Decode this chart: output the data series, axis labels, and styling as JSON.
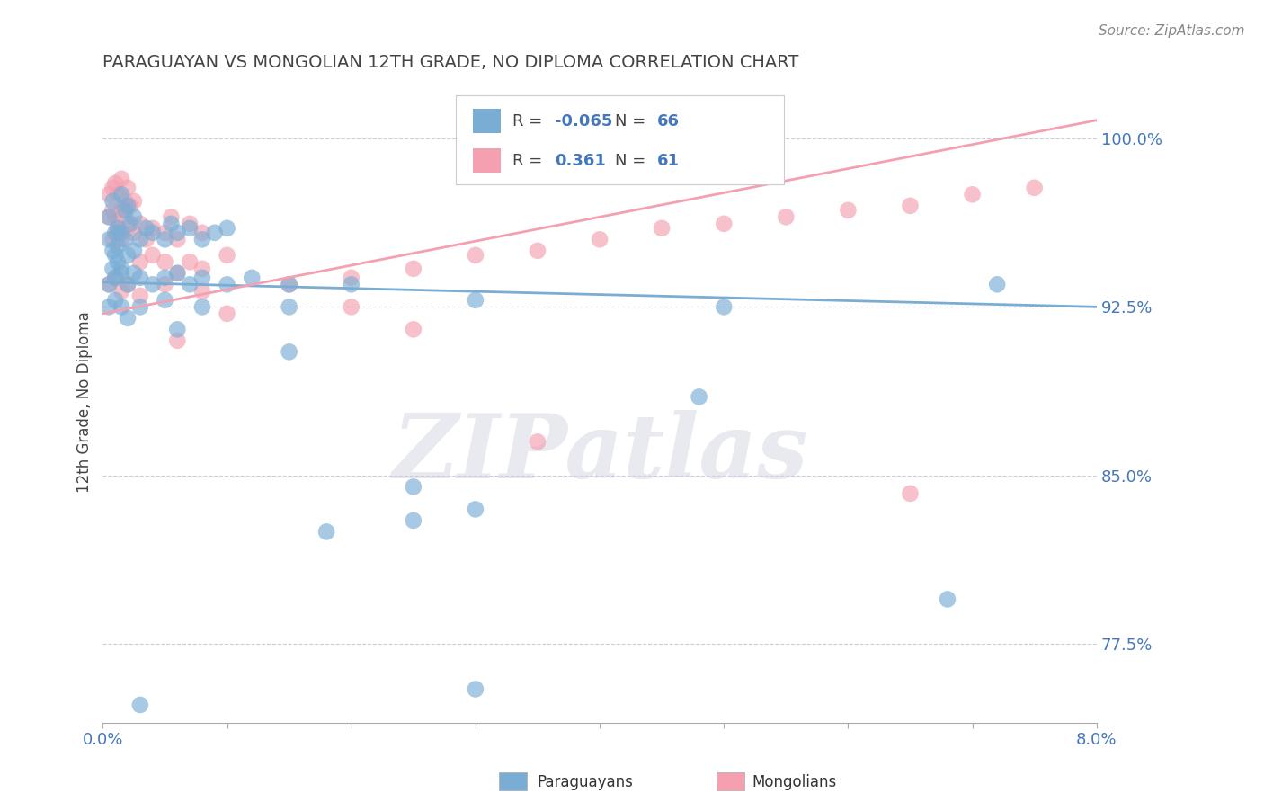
{
  "title": "PARAGUAYAN VS MONGOLIAN 12TH GRADE, NO DIPLOMA CORRELATION CHART",
  "source": "Source: ZipAtlas.com",
  "xlabel_paraguayans": "Paraguayans",
  "xlabel_mongolians": "Mongolians",
  "ylabel": "12th Grade, No Diploma",
  "xlim": [
    0.0,
    8.0
  ],
  "ylim": [
    74.0,
    102.5
  ],
  "yticks": [
    77.5,
    85.0,
    92.5,
    100.0
  ],
  "xticks": [
    0.0,
    1.0,
    2.0,
    3.0,
    4.0,
    5.0,
    6.0,
    7.0,
    8.0
  ],
  "ytick_labels": [
    "77.5%",
    "85.0%",
    "92.5%",
    "100.0%"
  ],
  "blue_color": "#7aadd4",
  "pink_color": "#f4a0b0",
  "blue_R": -0.065,
  "blue_N": 66,
  "pink_R": 0.361,
  "pink_N": 61,
  "watermark": "ZIPatlas",
  "blue_line_y0": 93.6,
  "blue_line_y8": 92.5,
  "pink_line_y0": 92.2,
  "pink_line_y8": 100.8,
  "blue_scatter": [
    [
      0.05,
      96.5
    ],
    [
      0.08,
      97.2
    ],
    [
      0.1,
      95.8
    ],
    [
      0.12,
      96.0
    ],
    [
      0.15,
      97.5
    ],
    [
      0.18,
      96.8
    ],
    [
      0.2,
      97.0
    ],
    [
      0.05,
      95.5
    ],
    [
      0.08,
      95.0
    ],
    [
      0.1,
      94.8
    ],
    [
      0.12,
      95.2
    ],
    [
      0.15,
      95.8
    ],
    [
      0.18,
      95.5
    ],
    [
      0.22,
      96.2
    ],
    [
      0.25,
      96.5
    ],
    [
      0.08,
      94.2
    ],
    [
      0.12,
      94.5
    ],
    [
      0.15,
      94.0
    ],
    [
      0.2,
      94.8
    ],
    [
      0.25,
      95.0
    ],
    [
      0.3,
      95.5
    ],
    [
      0.35,
      96.0
    ],
    [
      0.4,
      95.8
    ],
    [
      0.5,
      95.5
    ],
    [
      0.55,
      96.2
    ],
    [
      0.6,
      95.8
    ],
    [
      0.7,
      96.0
    ],
    [
      0.8,
      95.5
    ],
    [
      0.9,
      95.8
    ],
    [
      1.0,
      96.0
    ],
    [
      0.05,
      93.5
    ],
    [
      0.1,
      93.8
    ],
    [
      0.15,
      94.2
    ],
    [
      0.2,
      93.5
    ],
    [
      0.25,
      94.0
    ],
    [
      0.3,
      93.8
    ],
    [
      0.4,
      93.5
    ],
    [
      0.5,
      93.8
    ],
    [
      0.6,
      94.0
    ],
    [
      0.7,
      93.5
    ],
    [
      0.8,
      93.8
    ],
    [
      1.0,
      93.5
    ],
    [
      1.2,
      93.8
    ],
    [
      1.5,
      93.5
    ],
    [
      2.0,
      93.5
    ],
    [
      0.05,
      92.5
    ],
    [
      0.1,
      92.8
    ],
    [
      0.15,
      92.5
    ],
    [
      0.2,
      92.0
    ],
    [
      0.3,
      92.5
    ],
    [
      0.5,
      92.8
    ],
    [
      0.8,
      92.5
    ],
    [
      1.5,
      92.5
    ],
    [
      3.0,
      92.8
    ],
    [
      5.0,
      92.5
    ],
    [
      7.2,
      93.5
    ],
    [
      0.6,
      91.5
    ],
    [
      1.5,
      90.5
    ],
    [
      4.8,
      88.5
    ],
    [
      2.5,
      84.5
    ],
    [
      3.0,
      83.5
    ],
    [
      1.8,
      82.5
    ],
    [
      2.5,
      83.0
    ],
    [
      6.8,
      79.5
    ],
    [
      3.0,
      75.5
    ],
    [
      0.3,
      74.8
    ]
  ],
  "pink_scatter": [
    [
      0.05,
      97.5
    ],
    [
      0.08,
      97.8
    ],
    [
      0.1,
      98.0
    ],
    [
      0.12,
      97.5
    ],
    [
      0.15,
      98.2
    ],
    [
      0.18,
      97.2
    ],
    [
      0.2,
      97.8
    ],
    [
      0.05,
      96.5
    ],
    [
      0.08,
      96.8
    ],
    [
      0.1,
      96.5
    ],
    [
      0.12,
      96.0
    ],
    [
      0.15,
      96.8
    ],
    [
      0.18,
      96.5
    ],
    [
      0.22,
      97.0
    ],
    [
      0.25,
      97.2
    ],
    [
      0.08,
      95.5
    ],
    [
      0.12,
      95.8
    ],
    [
      0.15,
      95.5
    ],
    [
      0.2,
      96.0
    ],
    [
      0.25,
      95.8
    ],
    [
      0.3,
      96.2
    ],
    [
      0.35,
      95.5
    ],
    [
      0.4,
      96.0
    ],
    [
      0.5,
      95.8
    ],
    [
      0.55,
      96.5
    ],
    [
      0.6,
      95.5
    ],
    [
      0.7,
      96.2
    ],
    [
      0.8,
      95.8
    ],
    [
      0.3,
      94.5
    ],
    [
      0.4,
      94.8
    ],
    [
      0.5,
      94.5
    ],
    [
      0.6,
      94.0
    ],
    [
      0.7,
      94.5
    ],
    [
      0.8,
      94.2
    ],
    [
      1.0,
      94.8
    ],
    [
      0.05,
      93.5
    ],
    [
      0.1,
      93.8
    ],
    [
      0.15,
      93.2
    ],
    [
      0.2,
      93.5
    ],
    [
      0.3,
      93.0
    ],
    [
      0.5,
      93.5
    ],
    [
      0.8,
      93.2
    ],
    [
      1.5,
      93.5
    ],
    [
      2.0,
      93.8
    ],
    [
      2.5,
      94.2
    ],
    [
      3.0,
      94.8
    ],
    [
      3.5,
      95.0
    ],
    [
      4.0,
      95.5
    ],
    [
      4.5,
      96.0
    ],
    [
      5.0,
      96.2
    ],
    [
      5.5,
      96.5
    ],
    [
      6.0,
      96.8
    ],
    [
      6.5,
      97.0
    ],
    [
      7.0,
      97.5
    ],
    [
      7.5,
      97.8
    ],
    [
      2.0,
      92.5
    ],
    [
      1.0,
      92.2
    ],
    [
      2.5,
      91.5
    ],
    [
      3.5,
      86.5
    ],
    [
      6.5,
      84.2
    ],
    [
      0.6,
      91.0
    ]
  ],
  "title_color": "#444444",
  "axis_color": "#4477BB",
  "tick_color": "#4477BB",
  "grid_color": "#CCCCDD",
  "watermark_color": "#E8EAF0",
  "legend_value_color": "#4477BB"
}
